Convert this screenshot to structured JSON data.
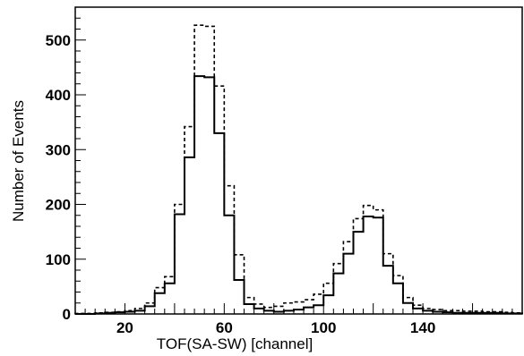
{
  "chart_data": {
    "type": "histogram",
    "title": "",
    "xlabel": "TOF(SA-SW) [channel]",
    "ylabel": "Number of Events",
    "xlim": [
      0,
      180
    ],
    "ylim": [
      0,
      560
    ],
    "bin_width": 4,
    "grid": false,
    "legend": "none",
    "x_ticks": [
      20,
      60,
      100,
      140
    ],
    "y_ticks": [
      0,
      100,
      200,
      300,
      400,
      500
    ],
    "series": [
      {
        "style": "solid",
        "bin_edges": [
          0,
          4,
          8,
          12,
          16,
          20,
          24,
          28,
          32,
          36,
          40,
          44,
          48,
          52,
          56,
          60,
          64,
          68,
          72,
          76,
          80,
          84,
          88,
          92,
          96,
          100,
          104,
          108,
          112,
          116,
          120,
          124,
          128,
          132,
          136,
          140,
          144,
          148,
          152,
          156,
          160,
          164,
          168,
          172,
          176,
          180
        ],
        "values": [
          0,
          0,
          1,
          2,
          3,
          4,
          6,
          14,
          38,
          56,
          182,
          286,
          434,
          432,
          330,
          180,
          62,
          18,
          10,
          6,
          4,
          6,
          8,
          12,
          16,
          34,
          74,
          110,
          150,
          178,
          176,
          88,
          56,
          20,
          10,
          6,
          4,
          3,
          2,
          2,
          2,
          2,
          2,
          1,
          1
        ]
      },
      {
        "style": "dashed",
        "bin_edges": [
          0,
          4,
          8,
          12,
          16,
          20,
          24,
          28,
          32,
          36,
          40,
          44,
          48,
          52,
          56,
          60,
          64,
          68,
          72,
          76,
          80,
          84,
          88,
          92,
          96,
          100,
          104,
          108,
          112,
          116,
          120,
          124,
          128,
          132,
          136,
          140,
          144,
          148,
          152,
          156,
          160,
          164,
          168,
          172,
          176,
          180
        ],
        "values": [
          1,
          1,
          2,
          3,
          4,
          6,
          10,
          20,
          48,
          68,
          200,
          342,
          527,
          525,
          416,
          234,
          108,
          30,
          18,
          12,
          14,
          20,
          22,
          26,
          36,
          56,
          92,
          132,
          174,
          198,
          190,
          110,
          70,
          30,
          16,
          10,
          8,
          6,
          6,
          5,
          5,
          4,
          4,
          3,
          2
        ]
      }
    ]
  }
}
